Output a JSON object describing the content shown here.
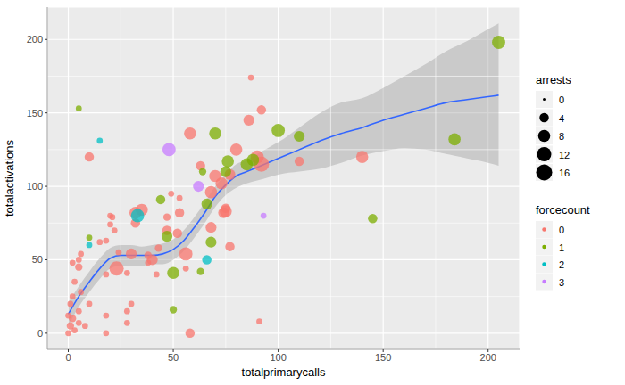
{
  "chart_data": {
    "type": "scatter",
    "x_label": "totalprimarycalls",
    "y_label": "totalactivations",
    "xlim": [
      -10,
      215
    ],
    "ylim": [
      -11,
      222
    ],
    "xticks": [
      0,
      50,
      100,
      150,
      200
    ],
    "yticks": [
      0,
      50,
      100,
      150,
      200
    ],
    "grid": true,
    "size_legend": {
      "title": "arrests",
      "values": [
        0,
        4,
        8,
        12,
        16
      ]
    },
    "color_legend_title": "forcecount",
    "series": [
      {
        "name": "0",
        "color": "#F8766D",
        "x": [
          140,
          110,
          92,
          90,
          86,
          87,
          92,
          91,
          80,
          77,
          73,
          75,
          75,
          77,
          74,
          70,
          68,
          68,
          63,
          58,
          58,
          56,
          53,
          52,
          47,
          47,
          49,
          43,
          40,
          38,
          38,
          35,
          32,
          32,
          30,
          28,
          23,
          24,
          22,
          20,
          20,
          21,
          18,
          18,
          18,
          18,
          15,
          10,
          10,
          8,
          5,
          5,
          3,
          5,
          5,
          3,
          2,
          2,
          1,
          0,
          0,
          1,
          2,
          6,
          6,
          28,
          28,
          30,
          42,
          56,
          53
        ],
        "y": [
          120,
          117,
          115,
          120,
          145,
          174,
          152,
          8,
          125,
          108,
          102,
          85,
          83,
          59,
          82,
          107,
          96,
          72,
          114,
          136,
          0,
          54,
          82,
          68,
          70,
          79,
          95,
          58,
          50,
          53,
          48,
          84,
          82,
          75,
          54,
          41,
          44,
          55,
          70,
          74,
          80,
          79,
          63,
          40,
          12,
          0,
          62,
          120,
          20,
          5,
          50,
          45,
          35,
          15,
          7,
          2,
          25,
          10,
          5,
          0,
          12,
          20,
          48,
          28,
          54,
          7,
          15,
          20,
          40,
          44,
          92
        ],
        "arrests": [
          8,
          4,
          14,
          10,
          6,
          1,
          4,
          1,
          8,
          6,
          8,
          4,
          8,
          4,
          6,
          8,
          8,
          6,
          4,
          8,
          4,
          10,
          4,
          4,
          4,
          2,
          1,
          2,
          6,
          2,
          1,
          8,
          8,
          4,
          6,
          1,
          12,
          1,
          1,
          1,
          1,
          1,
          1,
          1,
          1,
          1,
          1,
          4,
          1,
          1,
          1,
          2,
          1,
          1,
          1,
          1,
          1,
          2,
          2,
          1,
          1,
          1,
          1,
          1,
          1,
          1,
          1,
          1,
          1,
          1,
          1
        ]
      },
      {
        "name": "1",
        "color": "#7CAE00",
        "x": [
          205,
          184,
          145,
          110,
          100,
          88,
          85,
          76,
          75,
          70,
          66,
          68,
          63,
          50,
          50,
          47,
          44,
          5,
          10,
          64
        ],
        "y": [
          198,
          132,
          78,
          134,
          138,
          118,
          115,
          117,
          110,
          136,
          88,
          62,
          42,
          16,
          41,
          66,
          91,
          153,
          65,
          110
        ],
        "arrests": [
          10,
          8,
          4,
          6,
          10,
          8,
          8,
          8,
          6,
          8,
          6,
          6,
          2,
          2,
          8,
          6,
          4,
          1,
          1,
          2
        ]
      },
      {
        "name": "2",
        "color": "#00BFC4",
        "x": [
          66,
          33,
          15,
          10
        ],
        "y": [
          50,
          80,
          131,
          60
        ],
        "arrests": [
          4,
          10,
          1,
          1
        ]
      },
      {
        "name": "3",
        "color": "#C77CFF",
        "x": [
          93,
          62,
          48
        ],
        "y": [
          80,
          100,
          125
        ],
        "arrests": [
          1,
          6,
          10
        ]
      }
    ],
    "smooth": {
      "color": "#3366FF",
      "x": [
        0,
        5,
        10,
        15,
        20,
        25,
        30,
        35,
        40,
        45,
        50,
        55,
        60,
        65,
        70,
        75,
        80,
        85,
        90,
        95,
        100,
        110,
        120,
        130,
        140,
        150,
        160,
        170,
        180,
        190,
        200,
        205
      ],
      "y": [
        13,
        25,
        35,
        44,
        51,
        53,
        53,
        53,
        53,
        54,
        57,
        63,
        72,
        82,
        93,
        101,
        107,
        110,
        113,
        116,
        119,
        125,
        131,
        136,
        140,
        145,
        149,
        153,
        157,
        159,
        161,
        162
      ],
      "lower": [
        5,
        18,
        28,
        37,
        44,
        46,
        46,
        46,
        47,
        47,
        50,
        56,
        65,
        75,
        86,
        94,
        99,
        102,
        104,
        106,
        108,
        110,
        112,
        116,
        121,
        124,
        126,
        125,
        122,
        119,
        116,
        114
      ],
      "upper": [
        21,
        32,
        42,
        51,
        58,
        60,
        60,
        59,
        60,
        61,
        64,
        70,
        79,
        89,
        100,
        108,
        115,
        118,
        122,
        126,
        130,
        140,
        150,
        157,
        160,
        167,
        175,
        183,
        192,
        199,
        207,
        211
      ]
    }
  }
}
